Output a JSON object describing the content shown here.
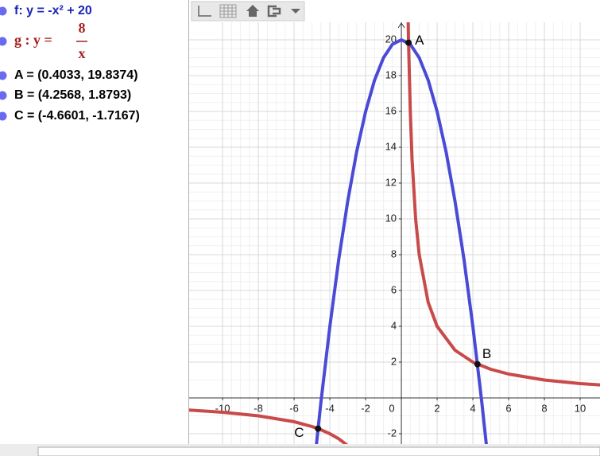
{
  "algebra": [
    {
      "text": "f: y = -x² + 20",
      "color": "#1c24b8"
    },
    {
      "label": "g : y =",
      "numerator": "8",
      "denominator": "x",
      "color": "#a52020"
    },
    {
      "text": "A = (0.4033, 19.8374)",
      "color": "#000000"
    },
    {
      "text": "B = (4.2568, 1.8793)",
      "color": "#000000"
    },
    {
      "text": "C = (-4.6601, -1.7167)",
      "color": "#000000"
    }
  ],
  "graphics": {
    "xlim": [
      -11.87,
      11.11
    ],
    "ylim": [
      -2.58,
      20.98
    ],
    "xticks": [
      -10,
      -8,
      -6,
      -4,
      -2,
      0,
      2,
      4,
      6,
      8,
      10
    ],
    "yticks": [
      -2,
      2,
      4,
      6,
      8,
      10,
      12,
      14,
      16,
      18,
      20
    ],
    "grid": true,
    "curves": [
      {
        "color": "#4a4ad6",
        "x": [
          -4.8,
          -4.5,
          -4,
          -3.5,
          -3,
          -2.5,
          -2,
          -1.5,
          -1,
          -0.5,
          0,
          0.5,
          1,
          1.5,
          2,
          2.5,
          3,
          3.5,
          4,
          4.5,
          4.8
        ],
        "values": [
          -3.04,
          -0.25,
          4,
          7.75,
          11,
          13.75,
          16,
          17.75,
          19,
          19.75,
          20,
          19.75,
          19,
          17.75,
          16,
          13.75,
          11,
          7.75,
          4,
          -0.25,
          -3.04
        ]
      },
      {
        "color": "#c84a4a",
        "x": [
          -12,
          -10,
          -8,
          -6,
          -5,
          -4.5,
          -4,
          -3.5,
          -3,
          0,
          0.38,
          0.4,
          0.5,
          0.6,
          0.8,
          1,
          1.5,
          2,
          3,
          4,
          5,
          6,
          8,
          10,
          12
        ],
        "values": [
          -0.667,
          -0.8,
          -1,
          -1.333,
          -1.6,
          -1.778,
          -2,
          -2.286,
          -2.667,
          null,
          21.05,
          20,
          16,
          13.33,
          10,
          8,
          5.333,
          4,
          2.667,
          2,
          1.6,
          1.333,
          1,
          0.8,
          0.667
        ]
      }
    ],
    "points": [
      {
        "label": "A",
        "x": 0.4033,
        "y": 19.8374
      },
      {
        "label": "B",
        "x": 4.2568,
        "y": 1.8793
      },
      {
        "label": "C",
        "x": -4.6601,
        "y": -1.7167
      }
    ]
  }
}
